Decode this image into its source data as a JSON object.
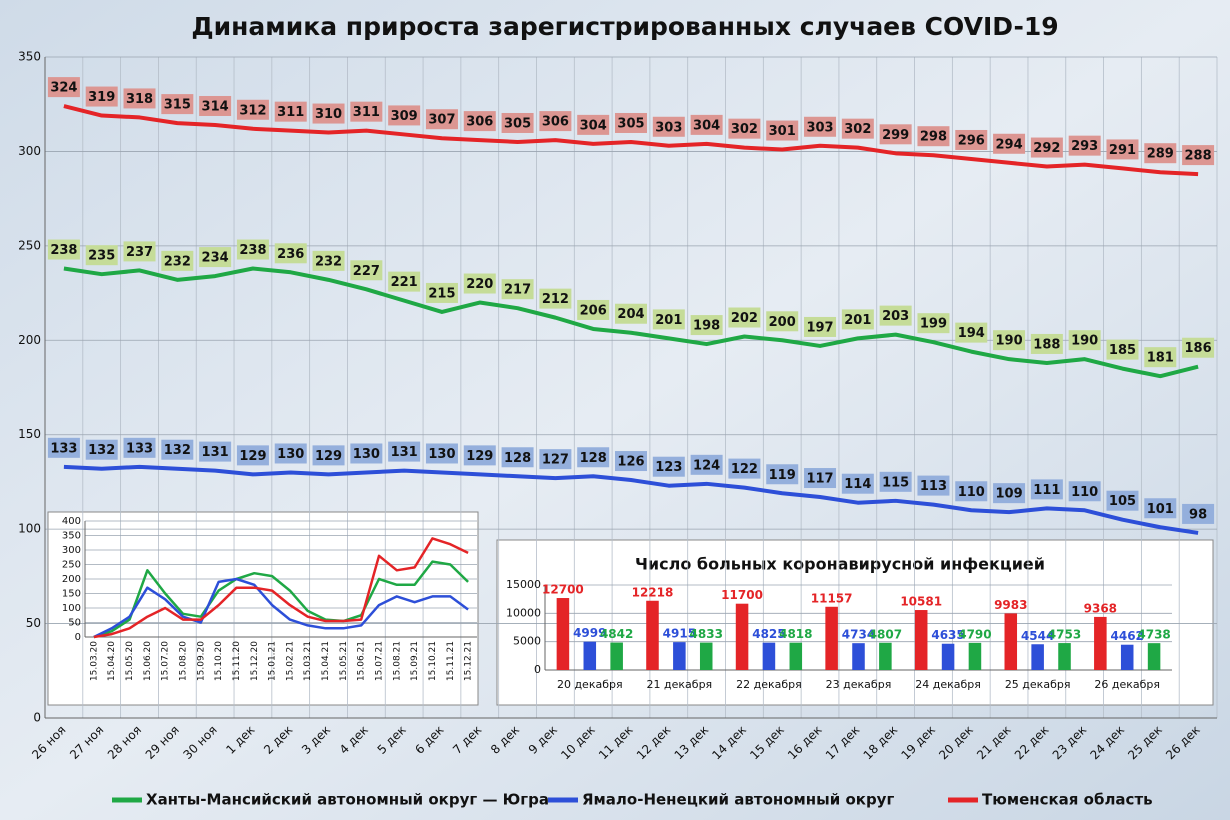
{
  "chart_data": [
    {
      "type": "line",
      "title": "Динамика прироста зарегистрированных случаев COVID-19",
      "categories": [
        "26 ноя",
        "27 ноя",
        "28 ноя",
        "29 ноя",
        "30 ноя",
        "1 дек",
        "2 дек",
        "3 дек",
        "4 дек",
        "5 дек",
        "6 дек",
        "7 дек",
        "8 дек",
        "9 дек",
        "10 дек",
        "11 дек",
        "12 дек",
        "13 дек",
        "14 дек",
        "15 дек",
        "16 дек",
        "17 дек",
        "18 дек",
        "19 дек",
        "20 дек",
        "21 дек",
        "22 дек",
        "23 дек",
        "24 дек",
        "25 дек",
        "26 дек"
      ],
      "series": [
        {
          "name": "Ханты-Мансийский автономный округ — Югра",
          "color": "#1fa845",
          "label_color": "#c5dc98",
          "values": [
            238,
            235,
            237,
            232,
            234,
            238,
            236,
            232,
            227,
            221,
            215,
            220,
            217,
            212,
            206,
            204,
            201,
            198,
            202,
            200,
            197,
            201,
            203,
            199,
            194,
            190,
            188,
            190,
            185,
            181,
            186
          ]
        },
        {
          "name": "Ямало-Ненецкий автономный округ",
          "color": "#2d4fd8",
          "label_color": "#94afdc",
          "values": [
            133,
            132,
            133,
            132,
            131,
            129,
            130,
            129,
            130,
            131,
            130,
            129,
            128,
            127,
            128,
            126,
            123,
            124,
            122,
            119,
            117,
            114,
            115,
            113,
            110,
            109,
            111,
            110,
            105,
            101,
            98
          ]
        },
        {
          "name": "Тюменская область",
          "color": "#e42427",
          "label_color": "#dc9692",
          "values": [
            324,
            319,
            318,
            315,
            314,
            312,
            311,
            310,
            311,
            309,
            307,
            306,
            305,
            306,
            304,
            305,
            303,
            304,
            302,
            301,
            303,
            302,
            299,
            298,
            296,
            294,
            292,
            293,
            291,
            289,
            288
          ]
        }
      ],
      "ylim": [
        0,
        350
      ],
      "yticks": [
        0,
        50,
        100,
        150,
        200,
        250,
        300,
        350
      ],
      "grid": true,
      "legend": "bottom"
    },
    {
      "type": "line",
      "categories": [
        "15.03.20",
        "15.04.20",
        "15.05.20",
        "15.06.20",
        "15.07.20",
        "15.08.20",
        "15.09.20",
        "15.10.20",
        "15.11.20",
        "15.12.20",
        "15.01.21",
        "15.02.21",
        "15.03.21",
        "15.04.21",
        "15.05.21",
        "15.06.21",
        "15.07.21",
        "15.08.21",
        "15.09.21",
        "15.10.21",
        "15.11.21",
        "15.12.21"
      ],
      "series": [
        {
          "color": "#1fa845",
          "values": [
            0,
            20,
            60,
            230,
            150,
            80,
            70,
            160,
            200,
            220,
            210,
            160,
            90,
            60,
            55,
            75,
            200,
            180,
            180,
            260,
            250,
            190
          ]
        },
        {
          "color": "#2d4fd8",
          "values": [
            0,
            30,
            70,
            170,
            130,
            70,
            50,
            190,
            200,
            180,
            110,
            60,
            40,
            30,
            30,
            40,
            110,
            140,
            120,
            140,
            140,
            95
          ]
        },
        {
          "color": "#e42427",
          "values": [
            0,
            10,
            30,
            70,
            100,
            60,
            60,
            110,
            170,
            170,
            160,
            110,
            70,
            55,
            55,
            60,
            280,
            230,
            240,
            340,
            320,
            290
          ]
        }
      ],
      "ylim": [
        0,
        400
      ],
      "yticks": [
        0,
        50,
        100,
        150,
        200,
        250,
        300,
        350,
        400
      ],
      "grid": true
    },
    {
      "type": "bar",
      "title": "Число больных коронавирусной инфекцией",
      "categories": [
        "20 декабря",
        "21 декабря",
        "22 декабря",
        "23 декабря",
        "24 декабря",
        "25 декабря",
        "26 декабря"
      ],
      "series": [
        {
          "color": "#e42427",
          "values": [
            12700,
            12218,
            11700,
            11157,
            10581,
            9983,
            9368
          ]
        },
        {
          "color": "#2d4fd8",
          "values": [
            4999,
            4915,
            4825,
            4734,
            4635,
            4544,
            4462
          ]
        },
        {
          "color": "#1fa845",
          "values": [
            4842,
            4833,
            4818,
            4807,
            4790,
            4753,
            4738
          ]
        }
      ],
      "ylim": [
        0,
        15000
      ],
      "yticks": [
        0,
        5000,
        10000,
        15000
      ],
      "grid": true
    }
  ]
}
